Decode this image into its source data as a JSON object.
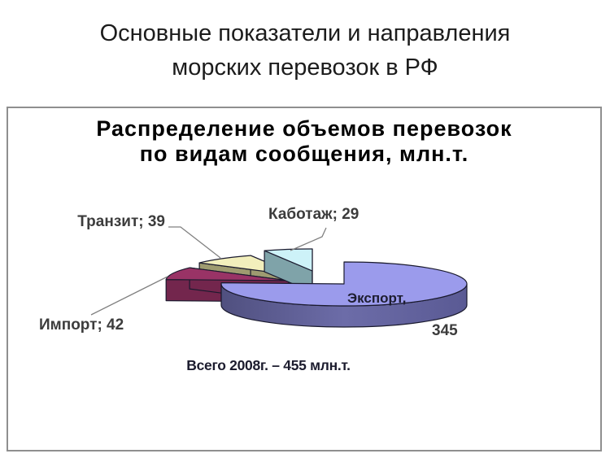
{
  "slide": {
    "title_line1": "Основные показатели и направления",
    "title_line2": "морских перевозок в РФ"
  },
  "chart": {
    "title_line1": "Распределение объемов перевозок",
    "title_line2": "по видам сообщения, млн.т.",
    "footnote": "Всего 2008г. – 455 млн.т.",
    "callouts": {
      "transit": "Транзит; 39",
      "kabotazh": "Каботаж; 29",
      "import": "Импорт; 42",
      "export_name": "Экспорт,",
      "export_value": "345"
    }
  },
  "chart_data": {
    "type": "pie",
    "title": "Распределение объемов перевозок по видам сообщения, млн.т.",
    "unit": "млн.т.",
    "total": 455,
    "total_note": "Всего 2008г. – 455 млн.т.",
    "label_format": "label; value",
    "legend_position": "none",
    "slices": [
      {
        "label": "Экспорт",
        "value": 345,
        "color": "#9B9BEC",
        "side_color": "#63639B"
      },
      {
        "label": "Импорт",
        "value": 42,
        "color": "#993366",
        "side_color": "#73264D"
      },
      {
        "label": "Транзит",
        "value": 39,
        "color": "#F2EFBC",
        "side_color": "#9E9B70"
      },
      {
        "label": "Каботаж",
        "value": 29,
        "color": "#CDF2F8",
        "side_color": "#7FA3A9"
      }
    ],
    "colors": {
      "outline": "#1a1a2e",
      "leader_line": "#808080",
      "frame_border": "#8f8f8f"
    }
  }
}
